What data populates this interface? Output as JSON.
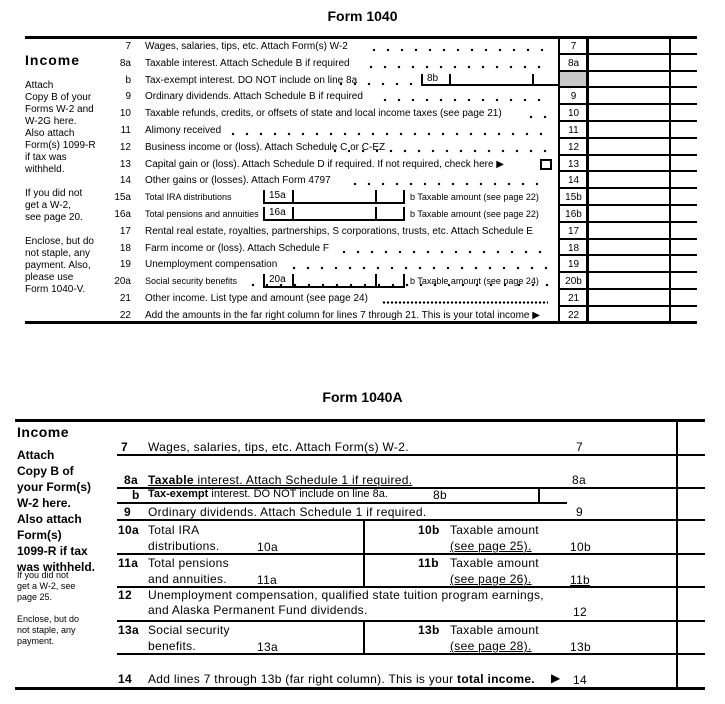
{
  "form1040": {
    "title": "Form 1040",
    "section": "Income",
    "sidebar": [
      "Attach",
      "Copy B of your",
      "Forms W-2 and",
      "W-2G here.",
      "Also attach",
      "Form(s) 1099-R",
      "if tax was",
      "withheld.",
      "",
      "If you did not",
      "get a W-2,",
      "see page 20.",
      "",
      "Enclose, but do",
      "not staple, any",
      "payment. Also,",
      "please use",
      "Form 1040-V."
    ],
    "rows": [
      {
        "num": "7",
        "text": "Wages, salaries, tips, etc. Attach Form(s) W-2",
        "box": "7"
      },
      {
        "num": "8a",
        "text": "Taxable interest. Attach Schedule B if required",
        "box": "8a"
      },
      {
        "num": "b",
        "text": "Tax-exempt interest. DO NOT include on line 8a",
        "inner": "8b",
        "box": ""
      },
      {
        "num": "9",
        "text": "Ordinary dividends. Attach Schedule B if required",
        "box": "9"
      },
      {
        "num": "10",
        "text": "Taxable refunds, credits, or offsets of state and local income taxes (see page 21)",
        "box": "10"
      },
      {
        "num": "11",
        "text": "Alimony received",
        "box": "11"
      },
      {
        "num": "12",
        "text": "Business income or (loss). Attach Schedule C or C-EZ",
        "box": "12"
      },
      {
        "num": "13",
        "text": "Capital gain or (loss). Attach Schedule D if required. If not required, check here ▶",
        "box": "13",
        "checkbox": true
      },
      {
        "num": "14",
        "text": "Other gains or (losses). Attach Form 4797",
        "box": "14"
      },
      {
        "num": "15a",
        "text": "Total IRA distributions",
        "inner": "15a",
        "btext": "b Taxable amount (see page 22)",
        "box": "15b"
      },
      {
        "num": "16a",
        "text": "Total pensions and annuities",
        "inner": "16a",
        "btext": "b Taxable amount (see page 22)",
        "box": "16b"
      },
      {
        "num": "17",
        "text": "Rental real estate, royalties, partnerships, S corporations, trusts, etc. Attach Schedule E",
        "box": "17"
      },
      {
        "num": "18",
        "text": "Farm income or (loss). Attach Schedule F",
        "box": "18"
      },
      {
        "num": "19",
        "text": "Unemployment compensation",
        "box": "19"
      },
      {
        "num": "20a",
        "text": "Social security benefits",
        "inner": "20a",
        "btext": "b Taxable amount (see page 24)",
        "box": "20b"
      },
      {
        "num": "21",
        "text": "Other income. List type and amount (see page 24)",
        "box": "21"
      },
      {
        "num": "22",
        "text": "Add the amounts in the far right column for lines 7 through 21. This is your total income ▶",
        "box": "22"
      }
    ]
  },
  "form1040a": {
    "title": "Form 1040A",
    "section": "Income",
    "sidebar_bold": [
      "Attach",
      "Copy B of",
      "your Form(s)",
      "W-2 here.",
      "Also attach",
      "Form(s)",
      "1099-R if tax",
      "was withheld."
    ],
    "sidebar_small1": [
      "If you did not",
      "get a W-2, see",
      "page 25."
    ],
    "sidebar_small2": [
      "Enclose, but do",
      "not staple, any",
      "payment."
    ],
    "l7": {
      "num": "7",
      "text": "Wages, salaries, tips, etc. Attach Form(s) W-2.",
      "box": "7"
    },
    "l8a": {
      "num": "8a",
      "bold": "Taxable",
      "text": " interest. Attach Schedule 1 if required.",
      "box": "8a"
    },
    "l8b": {
      "num": "b",
      "bold": "Tax-exempt",
      "text": " interest. DO NOT include on line 8a.",
      "box": "8b"
    },
    "l9": {
      "num": "9",
      "text": "Ordinary dividends. Attach Schedule 1 if required.",
      "box": "9"
    },
    "l10": {
      "num": "10a",
      "line1": "Total IRA",
      "line2": "distributions.",
      "inner": "10a",
      "bnum": "10b",
      "b1": "Taxable amount",
      "b2": "(see page 25).",
      "box": "10b"
    },
    "l11": {
      "num": "11a",
      "line1": "Total pensions",
      "line2": "and annuities.",
      "inner": "11a",
      "bnum": "11b",
      "b1": "Taxable amount",
      "b2": "(see page 26).",
      "box": "11b"
    },
    "l12": {
      "num": "12",
      "line1": "Unemployment compensation, qualified state tuition program earnings,",
      "line2": "and Alaska Permanent Fund dividends.",
      "box": "12"
    },
    "l13": {
      "num": "13a",
      "line1": "Social security",
      "line2": "benefits.",
      "inner": "13a",
      "bnum": "13b",
      "b1": "Taxable amount",
      "b2": "(see page 28).",
      "box": "13b"
    },
    "l14": {
      "num": "14",
      "text": "Add lines 7 through 13b (far right column). This is your ",
      "bold": "total income.",
      "arrow": "▶",
      "box": "14"
    }
  }
}
